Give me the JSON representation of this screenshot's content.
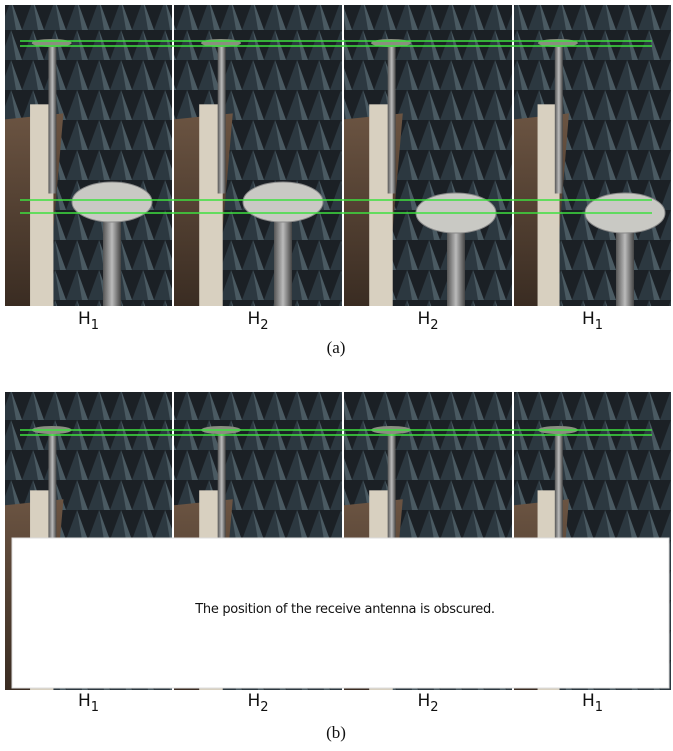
{
  "panels": [
    {
      "caption": "(a)",
      "labels": [
        {
          "base": "H",
          "sub": "1"
        },
        {
          "base": "H",
          "sub": "2"
        },
        {
          "base": "H",
          "sub": "2"
        },
        {
          "base": "H",
          "sub": "1"
        }
      ]
    },
    {
      "caption": "(b)",
      "labels": [
        {
          "base": "H",
          "sub": "1"
        },
        {
          "base": "H",
          "sub": "2"
        },
        {
          "base": "H",
          "sub": "2"
        },
        {
          "base": "H",
          "sub": "1"
        }
      ],
      "overlay": "The position of the receive antenna is obscured."
    }
  ]
}
